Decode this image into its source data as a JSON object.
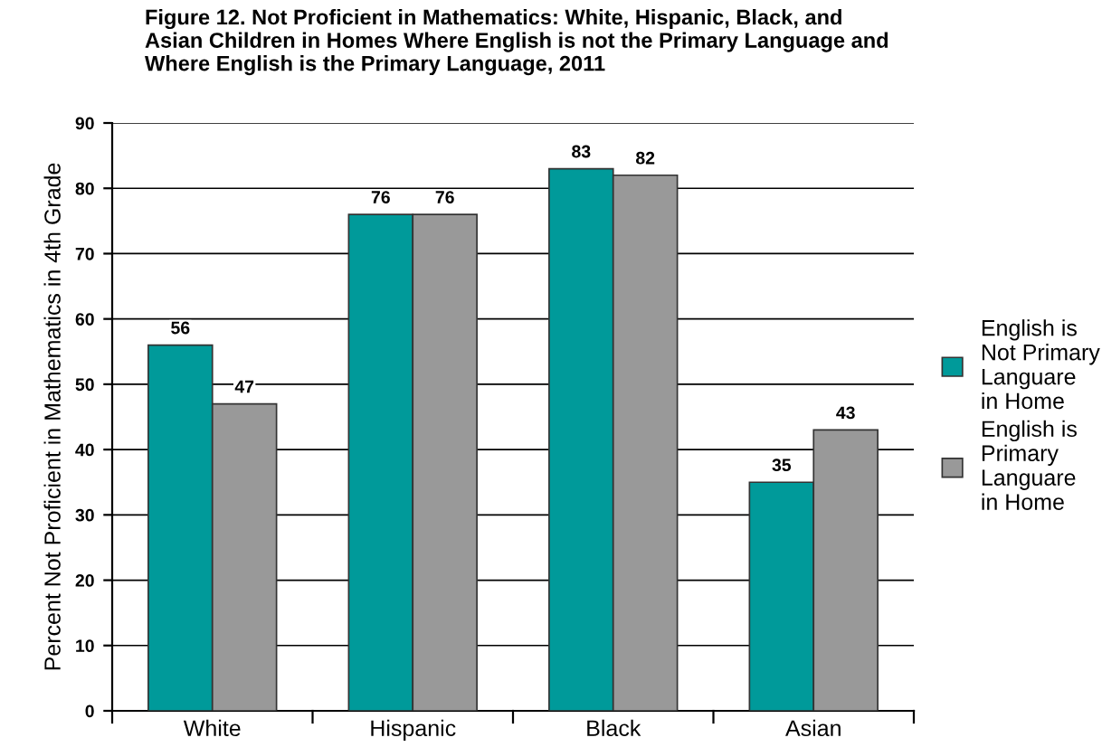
{
  "chart_data": {
    "type": "bar",
    "title": "Figure 12. Not Proficient in Mathematics: White, Hispanic, Black, and\nAsian Children in Homes Where English is not the Primary Language and\nWhere English is the Primary Language, 2011",
    "ylabel": "Percent Not Proficient in Mathematics in 4th Grade",
    "categories": [
      "White",
      "Hispanic",
      "Black",
      "Asian"
    ],
    "series": [
      {
        "name": "English is\nNot Primary\nLanguare\nin Home",
        "color": "#009a9a",
        "values": [
          56,
          76,
          83,
          35
        ]
      },
      {
        "name": "English is\nPrimary\nLanguare\nin Home",
        "color": "#999999",
        "values": [
          47,
          76,
          82,
          43
        ]
      }
    ],
    "ylim": [
      0,
      90
    ],
    "yticks": [
      0,
      10,
      20,
      30,
      40,
      50,
      60,
      70,
      80,
      90
    ],
    "grid": "y",
    "legend": "right",
    "data_labels": true
  }
}
